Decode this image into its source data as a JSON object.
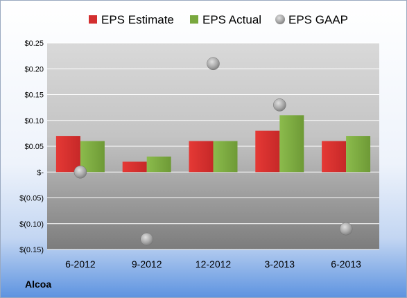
{
  "company": "Alcoa",
  "chart_data": {
    "type": "bar",
    "categories": [
      "6-2012",
      "9-2012",
      "12-2012",
      "3-2013",
      "6-2013"
    ],
    "series": [
      {
        "name": "EPS Estimate",
        "kind": "bar",
        "color": "#d32f2f",
        "values": [
          0.07,
          0.02,
          0.06,
          0.08,
          0.06
        ]
      },
      {
        "name": "EPS Actual",
        "kind": "bar",
        "color": "#79a83e",
        "values": [
          0.06,
          0.03,
          0.06,
          0.11,
          0.07
        ]
      },
      {
        "name": "EPS GAAP",
        "kind": "point",
        "color": "#9e9e9e",
        "values": [
          0.0,
          -0.13,
          0.21,
          0.13,
          -0.11
        ]
      }
    ],
    "ylim": [
      -0.15,
      0.25
    ],
    "yticks": [
      0.25,
      0.2,
      0.15,
      0.1,
      0.05,
      0.0,
      -0.05,
      -0.1,
      -0.15
    ],
    "ytick_labels": [
      "$0.25",
      "$0.20",
      "$0.15",
      "$0.10",
      "$0.05",
      "$-",
      "$(0.05)",
      "$(0.10)",
      "$(0.15)"
    ],
    "grid": true,
    "legend": "top"
  }
}
